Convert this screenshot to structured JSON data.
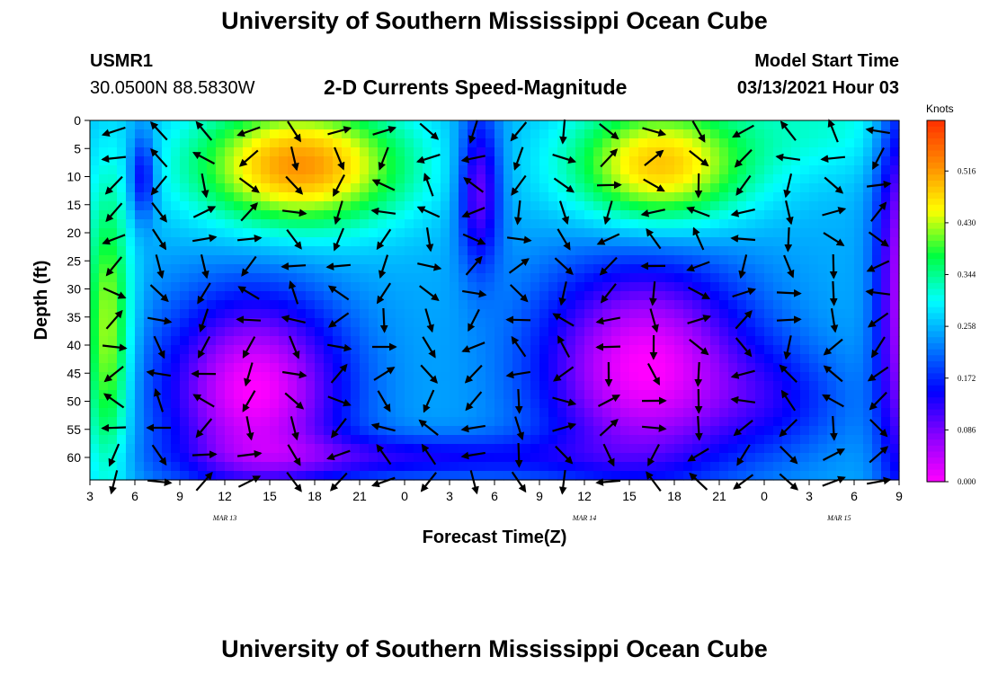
{
  "header": {
    "title": "University of Southern Mississippi Ocean Cube",
    "footer_title": "University of Southern Mississippi Ocean Cube",
    "station_id": "USMR1",
    "station_location": "30.0500N 88.5830W",
    "chart_title": "2-D Currents Speed-Magnitude",
    "model_start_label": "Model Start Time",
    "model_start_value": "03/13/2021 Hour 03"
  },
  "colors": {
    "scale": [
      "#ff00ff",
      "#8a00ff",
      "#0000ff",
      "#0080ff",
      "#00ffff",
      "#00ff40",
      "#ffff00",
      "#ff8c00",
      "#ff3000"
    ],
    "arrow": "#000000"
  },
  "chart_data": {
    "type": "heatmap",
    "xlabel": "Forecast Time(Z)",
    "ylabel": "Depth (ft)",
    "x_ticks": [
      "3",
      "6",
      "9",
      "12",
      "15",
      "18",
      "21",
      "0",
      "3",
      "6",
      "9",
      "12",
      "15",
      "18",
      "21",
      "0",
      "3",
      "6",
      "9"
    ],
    "y_ticks": [
      "0",
      "5",
      "10",
      "15",
      "20",
      "25",
      "30",
      "35",
      "40",
      "45",
      "50",
      "55",
      "60"
    ],
    "y_range": [
      0,
      64
    ],
    "x_range_hours": [
      3,
      57
    ],
    "date_labels": [
      {
        "label": "MAR 13",
        "hour": 12
      },
      {
        "label": "MAR 14",
        "hour": 36
      },
      {
        "label": "MAR 15",
        "hour": 53
      }
    ],
    "colorbar": {
      "units": "Knots",
      "tick_labels": [
        "0.000",
        "0.086",
        "0.172",
        "0.258",
        "0.344",
        "0.430",
        "0.516"
      ],
      "range": [
        0,
        0.6
      ]
    },
    "grid": false
  }
}
